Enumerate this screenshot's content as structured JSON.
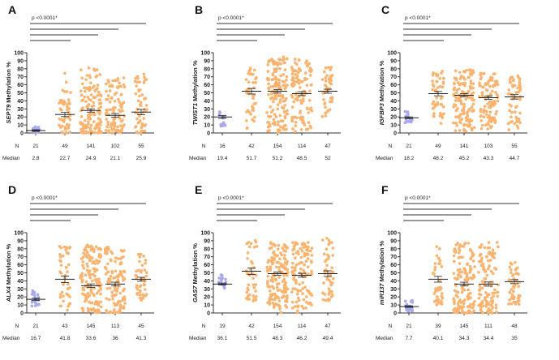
{
  "colors": {
    "control": "#a9a9ee",
    "case": "#fbb36e",
    "line": "#333333"
  },
  "row_labels": {
    "n": "N",
    "median": "Median"
  },
  "chart_data": [
    {
      "type": "scatter",
      "panel": "A",
      "gene": "SEPT9",
      "ylabel_suffix": " Methylation %",
      "p_text": "p  <0.0001*",
      "ylim": [
        0,
        100
      ],
      "yticks": [
        0,
        10,
        20,
        30,
        40,
        50,
        60,
        70,
        80,
        90,
        100
      ],
      "n": [
        21,
        49,
        141,
        102,
        55
      ],
      "median": [
        2.8,
        22.7,
        24.9,
        21.1,
        25.9
      ],
      "n_labels": [
        "21",
        "49",
        "141",
        "102",
        "55"
      ],
      "median_labels": [
        "2.8",
        "22.7",
        "24.9",
        "21.1",
        "25.9"
      ],
      "mean": [
        3,
        23,
        28,
        22,
        26
      ],
      "range": [
        [
          0,
          8
        ],
        [
          0,
          75
        ],
        [
          0,
          82
        ],
        [
          0,
          70
        ],
        [
          0,
          77
        ]
      ]
    },
    {
      "type": "scatter",
      "panel": "B",
      "gene": "TWIST1",
      "ylabel_suffix": " Methylation %",
      "p_text": "p  <0.0001*",
      "ylim": [
        0,
        100
      ],
      "yticks": [
        0,
        10,
        20,
        30,
        40,
        50,
        60,
        70,
        80,
        90,
        100
      ],
      "n": [
        16,
        42,
        154,
        114,
        47
      ],
      "median": [
        19.4,
        51.7,
        51.2,
        48.5,
        52
      ],
      "n_labels": [
        "16",
        "42",
        "154",
        "114",
        "47"
      ],
      "median_labels": [
        "19.4",
        "51.7",
        "51.2",
        "48.5",
        "52"
      ],
      "mean": [
        20,
        52,
        52,
        49,
        52
      ],
      "range": [
        [
          8,
          28
        ],
        [
          2,
          82
        ],
        [
          0,
          95
        ],
        [
          0,
          92
        ],
        [
          20,
          82
        ]
      ]
    },
    {
      "type": "scatter",
      "panel": "C",
      "gene": "IGFBP3",
      "ylabel_suffix": " Methylation %",
      "p_text": "p  <0.0001*",
      "ylim": [
        0,
        100
      ],
      "yticks": [
        0,
        10,
        20,
        30,
        40,
        50,
        60,
        70,
        80,
        90,
        100
      ],
      "n": [
        21,
        49,
        141,
        103,
        55
      ],
      "median": [
        18.2,
        48.2,
        45.2,
        43.3,
        44.7
      ],
      "n_labels": [
        "21",
        "49",
        "141",
        "103",
        "55"
      ],
      "median_labels": [
        "18.2",
        "48.2",
        "45.2",
        "43.3",
        "44.7"
      ],
      "mean": [
        19,
        49,
        47,
        44,
        45
      ],
      "range": [
        [
          12,
          27
        ],
        [
          5,
          78
        ],
        [
          0,
          80
        ],
        [
          5,
          75
        ],
        [
          3,
          72
        ]
      ]
    },
    {
      "type": "scatter",
      "panel": "D",
      "gene": "ALX4",
      "ylabel_suffix": " Methylation %",
      "p_text": "p  <0.0001*",
      "ylim": [
        0,
        100
      ],
      "yticks": [
        0,
        10,
        20,
        30,
        40,
        50,
        60,
        70,
        80,
        90,
        100
      ],
      "n": [
        21,
        43,
        145,
        113,
        45
      ],
      "median": [
        16.7,
        41.8,
        33.6,
        36,
        41.3
      ],
      "n_labels": [
        "21",
        "43",
        "145",
        "113",
        "45"
      ],
      "median_labels": [
        "16.7",
        "41.8",
        "33.6",
        "36",
        "41.3"
      ],
      "mean": [
        17,
        42,
        34,
        36,
        42
      ],
      "range": [
        [
          8,
          28
        ],
        [
          3,
          85
        ],
        [
          0,
          85
        ],
        [
          0,
          82
        ],
        [
          15,
          75
        ]
      ]
    },
    {
      "type": "scatter",
      "panel": "E",
      "gene": "GAS7",
      "ylabel_suffix": " Methylation %",
      "p_text": "p  <0.0001*",
      "ylim": [
        0,
        100
      ],
      "yticks": [
        0,
        10,
        20,
        30,
        40,
        50,
        60,
        70,
        80,
        90,
        100
      ],
      "n": [
        19,
        42,
        154,
        114,
        47
      ],
      "median": [
        36.1,
        51.5,
        48.3,
        46.2,
        49.4
      ],
      "n_labels": [
        "19",
        "42",
        "154",
        "114",
        "47"
      ],
      "median_labels": [
        "36.1",
        "51.5",
        "48.3",
        "46.2",
        "49.4"
      ],
      "mean": [
        36,
        52,
        49,
        47,
        49
      ],
      "range": [
        [
          25,
          48
        ],
        [
          15,
          95
        ],
        [
          0,
          88
        ],
        [
          0,
          88
        ],
        [
          15,
          98
        ]
      ]
    },
    {
      "type": "scatter",
      "panel": "F",
      "gene": "miR137",
      "ylabel_suffix": " Methylation %",
      "p_text": "p  <0.0001*",
      "ylim": [
        0,
        100
      ],
      "yticks": [
        0,
        10,
        20,
        30,
        40,
        50,
        60,
        70,
        80,
        90,
        100
      ],
      "n": [
        21,
        39,
        145,
        111,
        48
      ],
      "median": [
        7.7,
        40.1,
        34.3,
        34.4,
        35
      ],
      "n_labels": [
        "21",
        "39",
        "145",
        "111",
        "48"
      ],
      "median_labels": [
        "7.7",
        "40.1",
        "34.3",
        "34.4",
        "35"
      ],
      "mean": [
        8,
        42,
        36,
        36,
        39
      ],
      "range": [
        [
          2,
          16
        ],
        [
          10,
          88
        ],
        [
          0,
          88
        ],
        [
          0,
          88
        ],
        [
          10,
          65
        ]
      ]
    }
  ]
}
